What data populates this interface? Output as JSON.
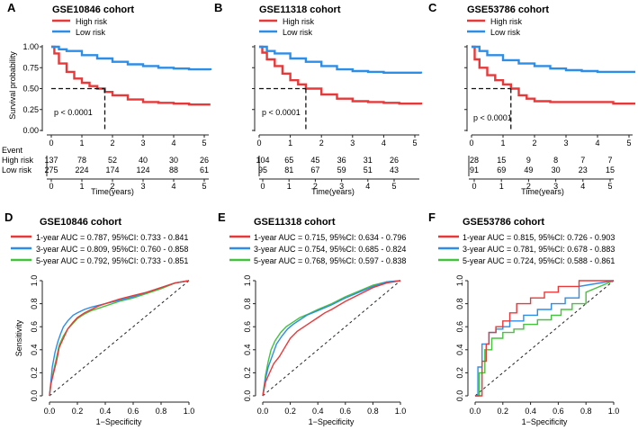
{
  "colors": {
    "high": "#e8393a",
    "low": "#2d8ee8",
    "y1": "#e8393a",
    "y3": "#2d8ee8",
    "y5": "#45c23e",
    "axis": "#222222"
  },
  "chart_data": [
    {
      "panel": "A",
      "type": "line",
      "title": "GSE10846 cohort",
      "legend": [
        "High risk",
        "Low risk"
      ],
      "xlabel": "Time(years)",
      "ylabel": "Survival probability",
      "xlim": [
        0,
        5
      ],
      "ylim": [
        0,
        1
      ],
      "xticks": [
        "0",
        "1",
        "2",
        "3",
        "4",
        "5"
      ],
      "yticks": [
        "0.00",
        "0.25",
        "0.50",
        "0.75",
        "1.00"
      ],
      "pvalue": "p < 0.0001",
      "median_time": 1.75,
      "series": [
        {
          "name": "High risk",
          "x": [
            0,
            0.1,
            0.25,
            0.5,
            0.75,
            1,
            1.25,
            1.5,
            1.75,
            2,
            2.5,
            3,
            3.5,
            4,
            4.5,
            5.2
          ],
          "y": [
            1,
            0.92,
            0.8,
            0.7,
            0.62,
            0.57,
            0.53,
            0.5,
            0.46,
            0.42,
            0.37,
            0.34,
            0.33,
            0.32,
            0.31,
            0.31
          ]
        },
        {
          "name": "Low risk",
          "x": [
            0,
            0.25,
            0.5,
            1,
            1.5,
            2,
            2.5,
            3,
            3.5,
            4,
            4.5,
            5.2
          ],
          "y": [
            1,
            0.97,
            0.95,
            0.9,
            0.86,
            0.82,
            0.79,
            0.77,
            0.75,
            0.74,
            0.73,
            0.72
          ]
        }
      ],
      "risk_table": {
        "title": "Event",
        "xlabel": "Time(years)",
        "xticks": [
          "0",
          "1",
          "2",
          "3",
          "4",
          "5"
        ],
        "rows": [
          {
            "label": "High risk",
            "values": [
              "137",
              "78",
              "52",
              "40",
              "30",
              "26"
            ]
          },
          {
            "label": "Low risk",
            "values": [
              "275",
              "224",
              "174",
              "124",
              "88",
              "61"
            ]
          }
        ]
      }
    },
    {
      "panel": "B",
      "type": "line",
      "title": "GSE11318 cohort",
      "legend": [
        "High risk",
        "Low risk"
      ],
      "xlabel": "Time(years)",
      "xlim": [
        0,
        5
      ],
      "ylim": [
        0,
        1
      ],
      "xticks": [
        "0",
        "1",
        "2",
        "3",
        "4",
        "5"
      ],
      "yticks": [
        "0.00",
        "0.25",
        "0.50",
        "0.75",
        "1.00"
      ],
      "pvalue": "p < 0.0001",
      "median_time": 1.5,
      "series": [
        {
          "name": "High risk",
          "x": [
            0,
            0.1,
            0.25,
            0.5,
            0.75,
            1,
            1.25,
            1.5,
            2,
            2.5,
            3,
            3.5,
            4,
            4.5,
            5.2
          ],
          "y": [
            1,
            0.93,
            0.85,
            0.77,
            0.68,
            0.6,
            0.55,
            0.5,
            0.43,
            0.38,
            0.35,
            0.34,
            0.33,
            0.32,
            0.31
          ]
        },
        {
          "name": "Low risk",
          "x": [
            0,
            0.25,
            0.5,
            1,
            1.5,
            2,
            2.5,
            3,
            3.5,
            4,
            4.5,
            5.2
          ],
          "y": [
            1,
            0.95,
            0.92,
            0.86,
            0.82,
            0.77,
            0.73,
            0.71,
            0.7,
            0.69,
            0.69,
            0.68
          ]
        }
      ],
      "risk_table": {
        "xlabel": "Time(years)",
        "xticks": [
          "0",
          "1",
          "2",
          "3",
          "4",
          "5"
        ],
        "rows": [
          {
            "label": "High risk",
            "values": [
              "104",
              "65",
              "45",
              "36",
              "31",
              "26"
            ]
          },
          {
            "label": "Low risk",
            "values": [
              "95",
              "81",
              "67",
              "59",
              "51",
              "43"
            ]
          }
        ]
      }
    },
    {
      "panel": "C",
      "type": "line",
      "title": "GSE53786 cohort",
      "legend": [
        "High risk",
        "Low risk"
      ],
      "xlabel": "Time(years)",
      "xlim": [
        0,
        5
      ],
      "ylim": [
        0,
        1
      ],
      "xticks": [
        "0",
        "1",
        "2",
        "3",
        "4",
        "5"
      ],
      "yticks": [
        "0.00",
        "0.25",
        "0.50",
        "0.75",
        "1.00"
      ],
      "pvalue": "p < 0.0001",
      "median_time": 1.25,
      "series": [
        {
          "name": "High risk",
          "x": [
            0,
            0.1,
            0.25,
            0.5,
            0.75,
            1,
            1.25,
            1.5,
            1.75,
            2,
            2.5,
            3,
            3.5,
            4,
            4.5,
            5.2
          ],
          "y": [
            1,
            0.85,
            0.75,
            0.66,
            0.6,
            0.55,
            0.5,
            0.42,
            0.38,
            0.35,
            0.34,
            0.34,
            0.34,
            0.34,
            0.32,
            0.32
          ]
        },
        {
          "name": "Low risk",
          "x": [
            0,
            0.25,
            0.5,
            1,
            1.5,
            2,
            2.5,
            3,
            3.5,
            4,
            4.5,
            5.2
          ],
          "y": [
            1,
            0.95,
            0.9,
            0.84,
            0.8,
            0.77,
            0.74,
            0.72,
            0.71,
            0.7,
            0.7,
            0.7
          ]
        }
      ],
      "risk_table": {
        "xlabel": "Time(years)",
        "xticks": [
          "0",
          "1",
          "2",
          "3",
          "4",
          "5"
        ],
        "rows": [
          {
            "label": "High risk",
            "values": [
              "28",
              "15",
              "9",
              "8",
              "7",
              "7"
            ]
          },
          {
            "label": "Low risk",
            "values": [
              "91",
              "69",
              "49",
              "30",
              "23",
              "15"
            ]
          }
        ]
      }
    },
    {
      "panel": "D",
      "type": "line",
      "title": "GSE10846 cohort",
      "xlabel": "1−Specificity",
      "ylabel": "Sensitivity",
      "xlim": [
        0,
        1
      ],
      "ylim": [
        0,
        1
      ],
      "xticks": [
        "0.0",
        "0.2",
        "0.4",
        "0.6",
        "0.8",
        "1.0"
      ],
      "yticks": [
        "0.0",
        "0.2",
        "0.4",
        "0.6",
        "0.8",
        "1.0"
      ],
      "legend": [
        "1-year AUC = 0.787, 95%CI: 0.733 - 0.841",
        "3-year AUC = 0.809, 95%CI: 0.760 - 0.858",
        "5-year AUC = 0.792, 95%CI: 0.733 - 0.851"
      ],
      "series": [
        {
          "name": "1-year",
          "x": [
            0,
            0.01,
            0.03,
            0.05,
            0.07,
            0.1,
            0.13,
            0.17,
            0.2,
            0.25,
            0.3,
            0.35,
            0.4,
            0.5,
            0.6,
            0.7,
            0.8,
            0.9,
            1
          ],
          "y": [
            0,
            0.1,
            0.2,
            0.3,
            0.42,
            0.5,
            0.58,
            0.64,
            0.68,
            0.72,
            0.75,
            0.78,
            0.8,
            0.84,
            0.87,
            0.9,
            0.94,
            0.98,
            1
          ]
        },
        {
          "name": "3-year",
          "x": [
            0,
            0.01,
            0.02,
            0.04,
            0.06,
            0.08,
            0.1,
            0.13,
            0.17,
            0.2,
            0.25,
            0.3,
            0.4,
            0.5,
            0.6,
            0.7,
            0.8,
            0.9,
            1
          ],
          "y": [
            0,
            0.12,
            0.25,
            0.38,
            0.47,
            0.54,
            0.6,
            0.65,
            0.7,
            0.72,
            0.75,
            0.77,
            0.8,
            0.83,
            0.86,
            0.9,
            0.94,
            0.98,
            1
          ]
        },
        {
          "name": "5-year",
          "x": [
            0,
            0.01,
            0.03,
            0.05,
            0.07,
            0.1,
            0.13,
            0.17,
            0.2,
            0.25,
            0.3,
            0.4,
            0.5,
            0.6,
            0.7,
            0.8,
            0.9,
            1
          ],
          "y": [
            0,
            0.1,
            0.22,
            0.33,
            0.44,
            0.52,
            0.58,
            0.63,
            0.67,
            0.71,
            0.74,
            0.78,
            0.82,
            0.85,
            0.89,
            0.93,
            0.98,
            1
          ]
        }
      ]
    },
    {
      "panel": "E",
      "type": "line",
      "title": "GSE11318 cohort",
      "xlabel": "1−Specificity",
      "xlim": [
        0,
        1
      ],
      "ylim": [
        0,
        1
      ],
      "xticks": [
        "0.0",
        "0.2",
        "0.4",
        "0.6",
        "0.8",
        "1.0"
      ],
      "yticks": [
        "0.0",
        "0.2",
        "0.4",
        "0.6",
        "0.8",
        "1.0"
      ],
      "legend": [
        "1-year AUC = 0.715, 95%CI: 0.634 - 0.796",
        "3-year AUC = 0.754, 95%CI: 0.685 - 0.824",
        "5-year AUC = 0.768, 95%CI: 0.597 - 0.838"
      ],
      "series": [
        {
          "name": "1-year",
          "x": [
            0,
            0.02,
            0.05,
            0.08,
            0.12,
            0.16,
            0.2,
            0.25,
            0.3,
            0.35,
            0.4,
            0.45,
            0.5,
            0.6,
            0.7,
            0.8,
            0.9,
            1
          ],
          "y": [
            0,
            0.12,
            0.2,
            0.28,
            0.34,
            0.42,
            0.5,
            0.56,
            0.6,
            0.64,
            0.68,
            0.72,
            0.75,
            0.82,
            0.88,
            0.94,
            0.98,
            1
          ]
        },
        {
          "name": "3-year",
          "x": [
            0,
            0.02,
            0.04,
            0.07,
            0.1,
            0.14,
            0.18,
            0.22,
            0.27,
            0.32,
            0.4,
            0.5,
            0.6,
            0.7,
            0.8,
            0.9,
            1
          ],
          "y": [
            0,
            0.15,
            0.25,
            0.35,
            0.45,
            0.52,
            0.58,
            0.62,
            0.66,
            0.7,
            0.74,
            0.79,
            0.85,
            0.9,
            0.95,
            0.99,
            1
          ]
        },
        {
          "name": "5-year",
          "x": [
            0,
            0.02,
            0.04,
            0.06,
            0.09,
            0.13,
            0.17,
            0.22,
            0.27,
            0.33,
            0.4,
            0.5,
            0.6,
            0.7,
            0.8,
            0.9,
            1
          ],
          "y": [
            0,
            0.18,
            0.3,
            0.4,
            0.48,
            0.55,
            0.6,
            0.64,
            0.68,
            0.71,
            0.75,
            0.8,
            0.86,
            0.91,
            0.96,
            0.99,
            1
          ]
        }
      ]
    },
    {
      "panel": "F",
      "type": "line",
      "title": "GSE53786 cohort",
      "xlabel": "1−Specificity",
      "xlim": [
        0,
        1
      ],
      "ylim": [
        0,
        1
      ],
      "xticks": [
        "0.0",
        "0.2",
        "0.4",
        "0.6",
        "0.8",
        "1.0"
      ],
      "yticks": [
        "0.0",
        "0.2",
        "0.4",
        "0.6",
        "0.8",
        "1.0"
      ],
      "legend": [
        "1-year AUC = 0.815, 95%CI: 0.726 - 0.903",
        "3-year AUC = 0.781, 95%CI: 0.678 - 0.883",
        "5-year AUC = 0.724, 95%CI: 0.588 - 0.861"
      ],
      "series": [
        {
          "name": "1-year",
          "x": [
            0,
            0.05,
            0.05,
            0.08,
            0.08,
            0.1,
            0.1,
            0.15,
            0.15,
            0.2,
            0.2,
            0.25,
            0.25,
            0.3,
            0.3,
            0.4,
            0.4,
            0.5,
            0.5,
            0.6,
            0.6,
            0.75,
            0.75,
            1
          ],
          "y": [
            0,
            0,
            0.3,
            0.3,
            0.45,
            0.45,
            0.55,
            0.55,
            0.6,
            0.6,
            0.65,
            0.65,
            0.72,
            0.72,
            0.8,
            0.8,
            0.85,
            0.85,
            0.9,
            0.9,
            0.95,
            0.95,
            1,
            1
          ]
        },
        {
          "name": "3-year",
          "x": [
            0,
            0.02,
            0.02,
            0.05,
            0.05,
            0.1,
            0.1,
            0.15,
            0.15,
            0.2,
            0.2,
            0.25,
            0.25,
            0.35,
            0.35,
            0.45,
            0.45,
            0.55,
            0.55,
            0.65,
            0.65,
            0.75,
            0.75,
            1
          ],
          "y": [
            0,
            0,
            0.25,
            0.25,
            0.45,
            0.45,
            0.55,
            0.55,
            0.58,
            0.58,
            0.6,
            0.6,
            0.65,
            0.65,
            0.7,
            0.7,
            0.75,
            0.75,
            0.8,
            0.8,
            0.85,
            0.85,
            0.95,
            1
          ]
        },
        {
          "name": "5-year",
          "x": [
            0,
            0.03,
            0.03,
            0.07,
            0.07,
            0.12,
            0.12,
            0.2,
            0.2,
            0.28,
            0.28,
            0.35,
            0.35,
            0.45,
            0.45,
            0.55,
            0.55,
            0.62,
            0.62,
            0.7,
            0.7,
            0.8,
            0.8,
            1
          ],
          "y": [
            0,
            0,
            0.2,
            0.2,
            0.4,
            0.4,
            0.5,
            0.5,
            0.55,
            0.55,
            0.58,
            0.58,
            0.62,
            0.62,
            0.66,
            0.66,
            0.7,
            0.7,
            0.75,
            0.75,
            0.8,
            0.8,
            0.9,
            1
          ]
        }
      ]
    }
  ]
}
